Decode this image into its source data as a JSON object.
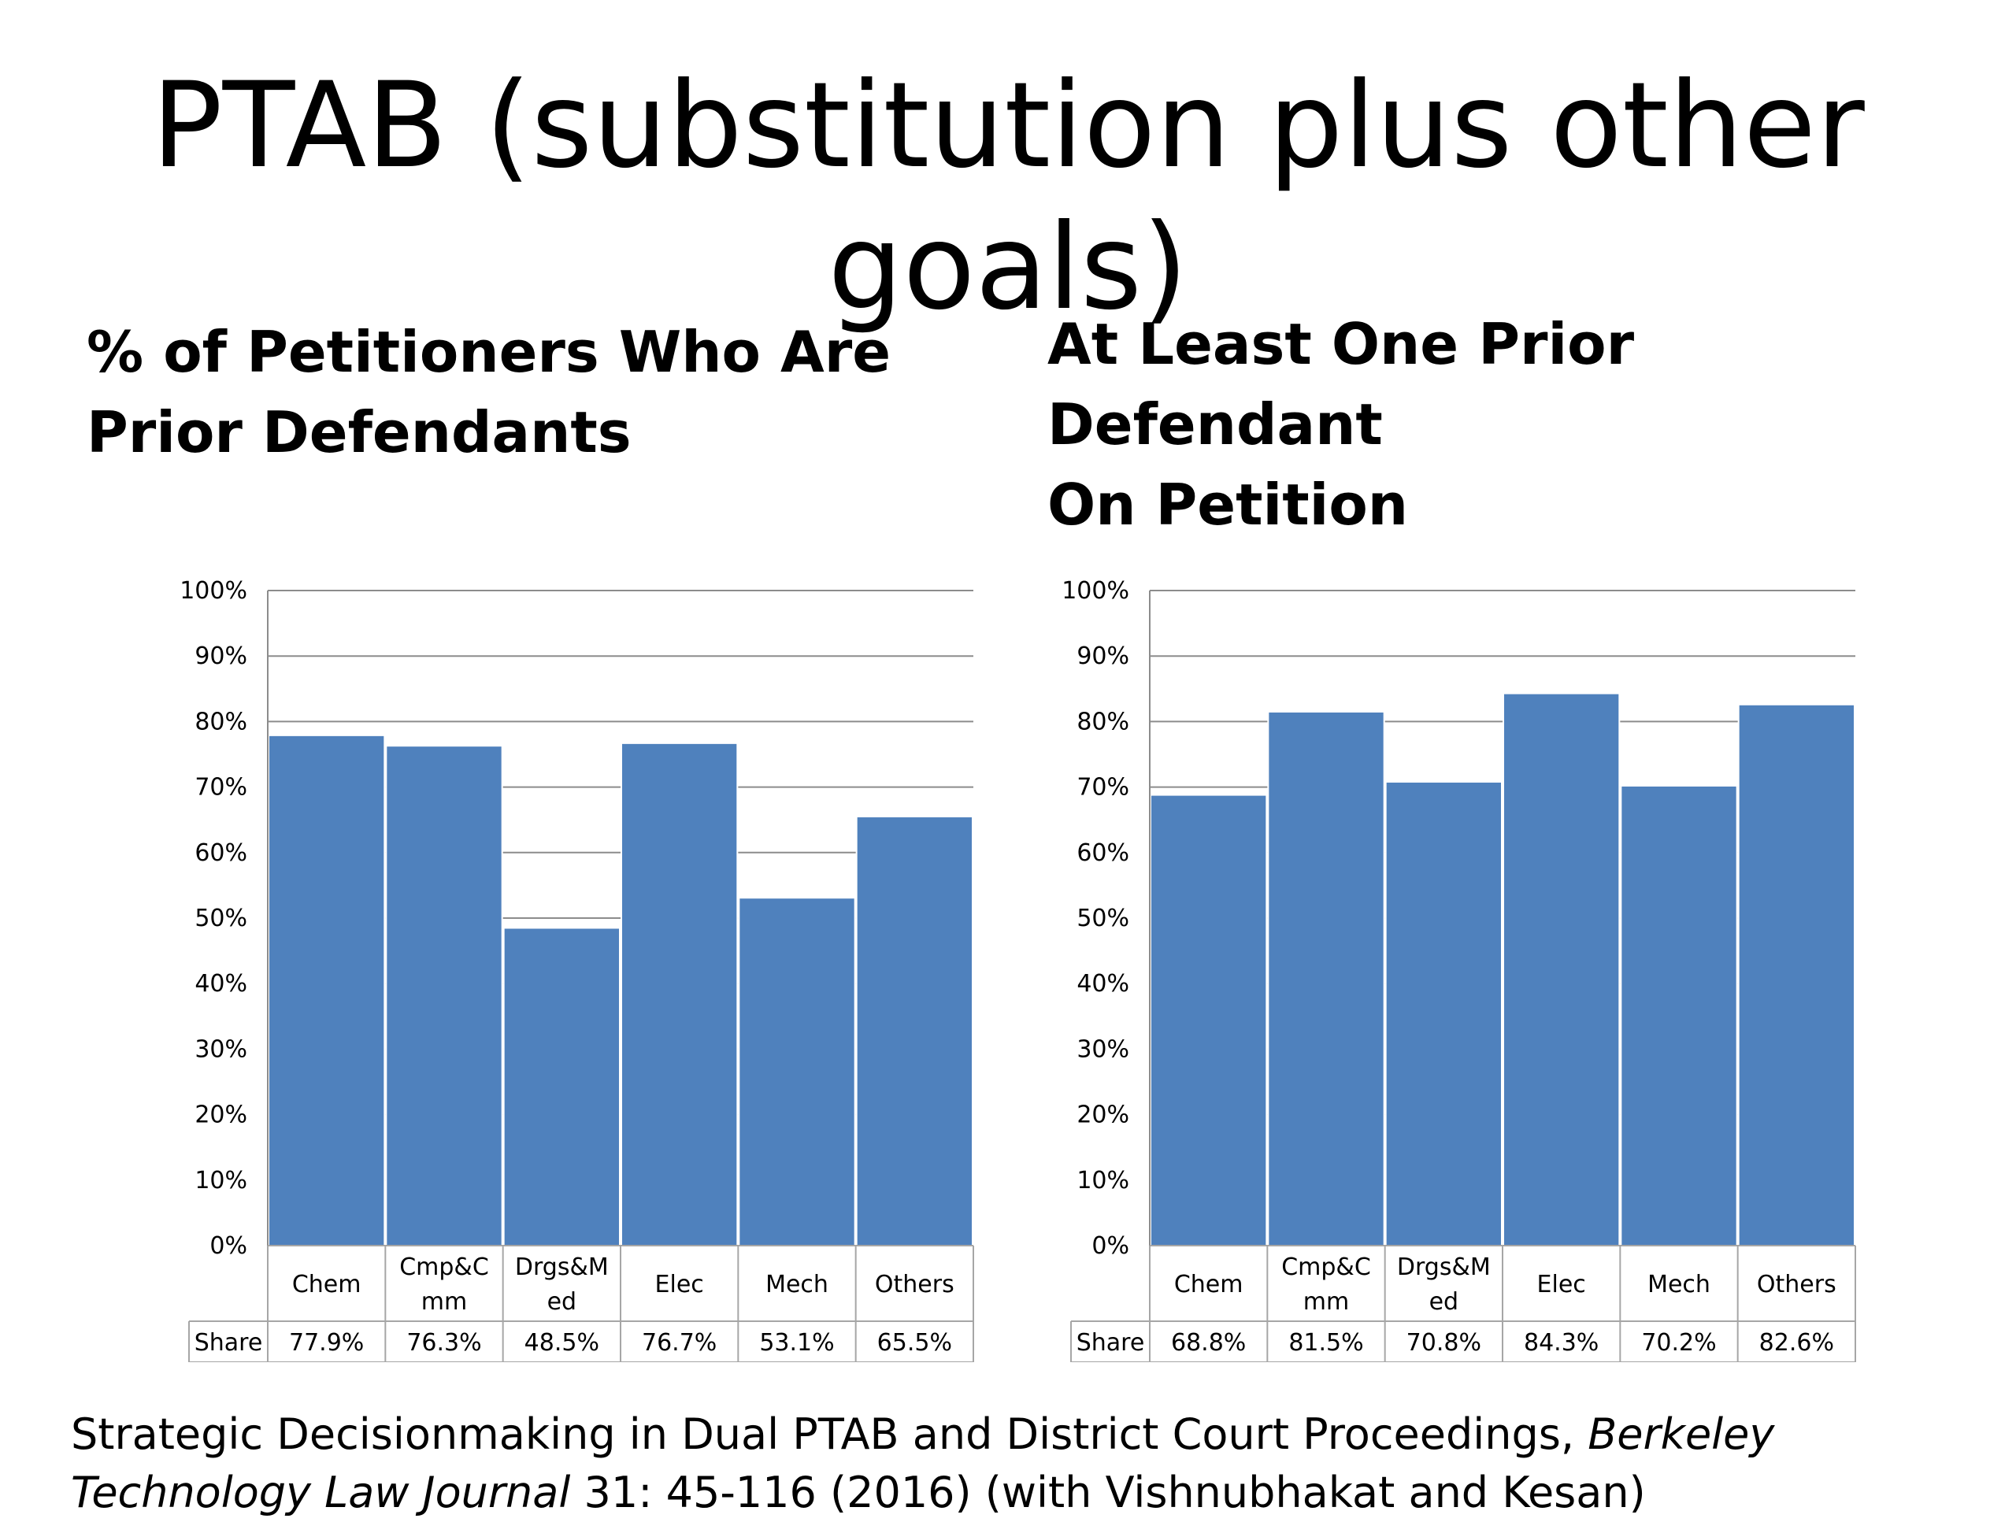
{
  "slide": {
    "title": "PTAB (substitution plus other goals)"
  },
  "charts": {
    "left_heading": "% of Petitioners Who Are\nPrior Defendants",
    "right_heading": "At Least One Prior Defendant\nOn Petition"
  },
  "colors": {
    "bar": "#4f81bd",
    "grid": "#8c8c8c",
    "table_border": "#a6a6a6"
  },
  "citation": {
    "text_a": "Strategic Decisionmaking in Dual PTAB and District Court Proceedings, ",
    "journal": "Berkeley Technology Law Journal",
    "text_b": " 31: 45-116 (2016) (with Vishnubhakat and Kesan)"
  },
  "chart_data": [
    {
      "type": "bar",
      "title": "% of Petitioners Who Are Prior Defendants",
      "categories": [
        [
          "Chem"
        ],
        [
          "Cmp&C",
          "mm"
        ],
        [
          "Drgs&M",
          "ed"
        ],
        [
          "Elec"
        ],
        [
          "Mech"
        ],
        [
          "Others"
        ]
      ],
      "series": [
        {
          "name": "Share",
          "values": [
            77.9,
            76.3,
            48.5,
            76.7,
            53.1,
            65.5
          ]
        }
      ],
      "value_labels": [
        "77.9%",
        "76.3%",
        "48.5%",
        "76.7%",
        "53.1%",
        "65.5%"
      ],
      "yticks": [
        "0%",
        "10%",
        "20%",
        "30%",
        "40%",
        "50%",
        "60%",
        "70%",
        "80%",
        "90%",
        "100%"
      ],
      "ylim": [
        0,
        100
      ],
      "grid": true,
      "legend": "data table below chart"
    },
    {
      "type": "bar",
      "title": "At Least One Prior Defendant On Petition",
      "categories": [
        [
          "Chem"
        ],
        [
          "Cmp&C",
          "mm"
        ],
        [
          "Drgs&M",
          "ed"
        ],
        [
          "Elec"
        ],
        [
          "Mech"
        ],
        [
          "Others"
        ]
      ],
      "series": [
        {
          "name": "Share",
          "values": [
            68.8,
            81.5,
            70.8,
            84.3,
            70.2,
            82.6
          ]
        }
      ],
      "value_labels": [
        "68.8%",
        "81.5%",
        "70.8%",
        "84.3%",
        "70.2%",
        "82.6%"
      ],
      "yticks": [
        "0%",
        "10%",
        "20%",
        "30%",
        "40%",
        "50%",
        "60%",
        "70%",
        "80%",
        "90%",
        "100%"
      ],
      "ylim": [
        0,
        100
      ],
      "grid": true,
      "legend": "data table below chart"
    }
  ]
}
